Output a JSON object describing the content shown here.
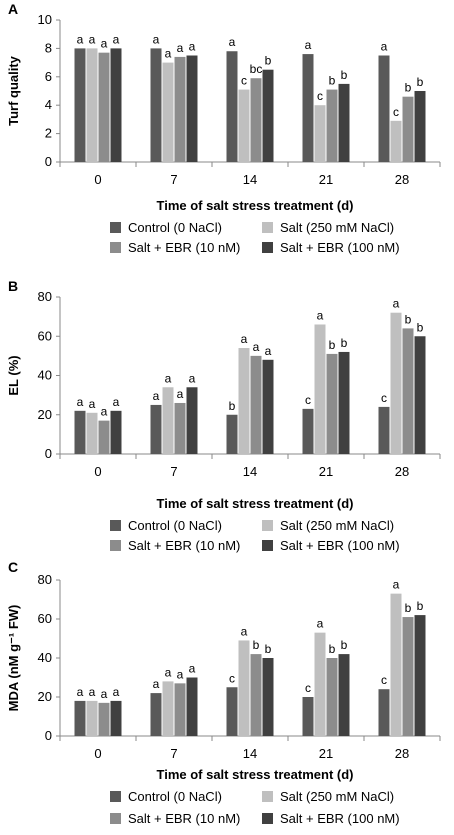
{
  "colors": {
    "control": "#595959",
    "salt": "#bfbfbf",
    "ebr10": "#8c8c8c",
    "ebr100": "#404040",
    "axis": "#888888",
    "text": "#000000"
  },
  "chart_data": [
    {
      "type": "bar",
      "panel_label": "A",
      "xlabel": "Time of salt stress treatment (d)",
      "ylabel": "Turf quality",
      "ylim": [
        0,
        10
      ],
      "yticks": [
        0,
        2,
        4,
        6,
        8,
        10
      ],
      "categories": [
        "0",
        "7",
        "14",
        "21",
        "28"
      ],
      "legend_position": "bottom",
      "series": [
        {
          "name": "Control (0 NaCl)",
          "color_key": "control",
          "values": [
            8.0,
            8.0,
            7.8,
            7.6,
            7.5
          ],
          "labels": [
            "a",
            "a",
            "a",
            "a",
            "a"
          ]
        },
        {
          "name": "Salt (250 mM NaCl)",
          "color_key": "salt",
          "values": [
            8.0,
            7.0,
            5.1,
            4.0,
            2.9
          ],
          "labels": [
            "a",
            "a",
            "c",
            "c",
            "c"
          ]
        },
        {
          "name": "Salt + EBR (10 nM)",
          "color_key": "ebr10",
          "values": [
            7.7,
            7.4,
            5.9,
            5.1,
            4.6
          ],
          "labels": [
            "a",
            "a",
            "bc",
            "b",
            "b"
          ]
        },
        {
          "name": "Salt + EBR (100 nM)",
          "color_key": "ebr100",
          "values": [
            8.0,
            7.5,
            6.5,
            5.5,
            5.0
          ],
          "labels": [
            "a",
            "a",
            "b",
            "b",
            "b"
          ]
        }
      ]
    },
    {
      "type": "bar",
      "panel_label": "B",
      "xlabel": "Time of salt stress treatment  (d)",
      "ylabel": "EL (%)",
      "ylim": [
        0,
        80
      ],
      "yticks": [
        0,
        20,
        40,
        60,
        80
      ],
      "categories": [
        "0",
        "7",
        "14",
        "21",
        "28"
      ],
      "legend_position": "bottom",
      "series": [
        {
          "name": "Control (0 NaCl)",
          "color_key": "control",
          "values": [
            22,
            25,
            20,
            23,
            24
          ],
          "labels": [
            "a",
            "a",
            "b",
            "c",
            "c"
          ]
        },
        {
          "name": "Salt (250 mM NaCl)",
          "color_key": "salt",
          "values": [
            21,
            34,
            54,
            66,
            72
          ],
          "labels": [
            "a",
            "a",
            "a",
            "a",
            "a"
          ]
        },
        {
          "name": "Salt + EBR (10 nM)",
          "color_key": "ebr10",
          "values": [
            17,
            26,
            50,
            51,
            64
          ],
          "labels": [
            "a",
            "a",
            "a",
            "b",
            "b"
          ]
        },
        {
          "name": "Salt + EBR (100 nM)",
          "color_key": "ebr100",
          "values": [
            22,
            34,
            48,
            52,
            60
          ],
          "labels": [
            "a",
            "a",
            "a",
            "b",
            "b"
          ]
        }
      ]
    },
    {
      "type": "bar",
      "panel_label": "C",
      "xlabel": "Time of salt stress treatment  (d)",
      "ylabel": "MDA (nM g⁻¹ FW)",
      "ylim": [
        0,
        80
      ],
      "yticks": [
        0,
        20,
        40,
        60,
        80
      ],
      "categories": [
        "0",
        "7",
        "14",
        "21",
        "28"
      ],
      "legend_position": "bottom",
      "series": [
        {
          "name": "Control (0 NaCl)",
          "color_key": "control",
          "values": [
            18,
            22,
            25,
            20,
            24
          ],
          "labels": [
            "a",
            "a",
            "c",
            "c",
            "c"
          ]
        },
        {
          "name": "Salt (250 mM NaCl)",
          "color_key": "salt",
          "values": [
            18,
            28,
            49,
            53,
            73
          ],
          "labels": [
            "a",
            "a",
            "a",
            "a",
            "a"
          ]
        },
        {
          "name": "Salt + EBR (10 nM)",
          "color_key": "ebr10",
          "values": [
            17,
            27,
            42,
            40,
            61
          ],
          "labels": [
            "a",
            "a",
            "b",
            "b",
            "b"
          ]
        },
        {
          "name": "Salt + EBR (100 nM)",
          "color_key": "ebr100",
          "values": [
            18,
            30,
            40,
            42,
            62
          ],
          "labels": [
            "a",
            "a",
            "b",
            "b",
            "b"
          ]
        }
      ]
    }
  ]
}
